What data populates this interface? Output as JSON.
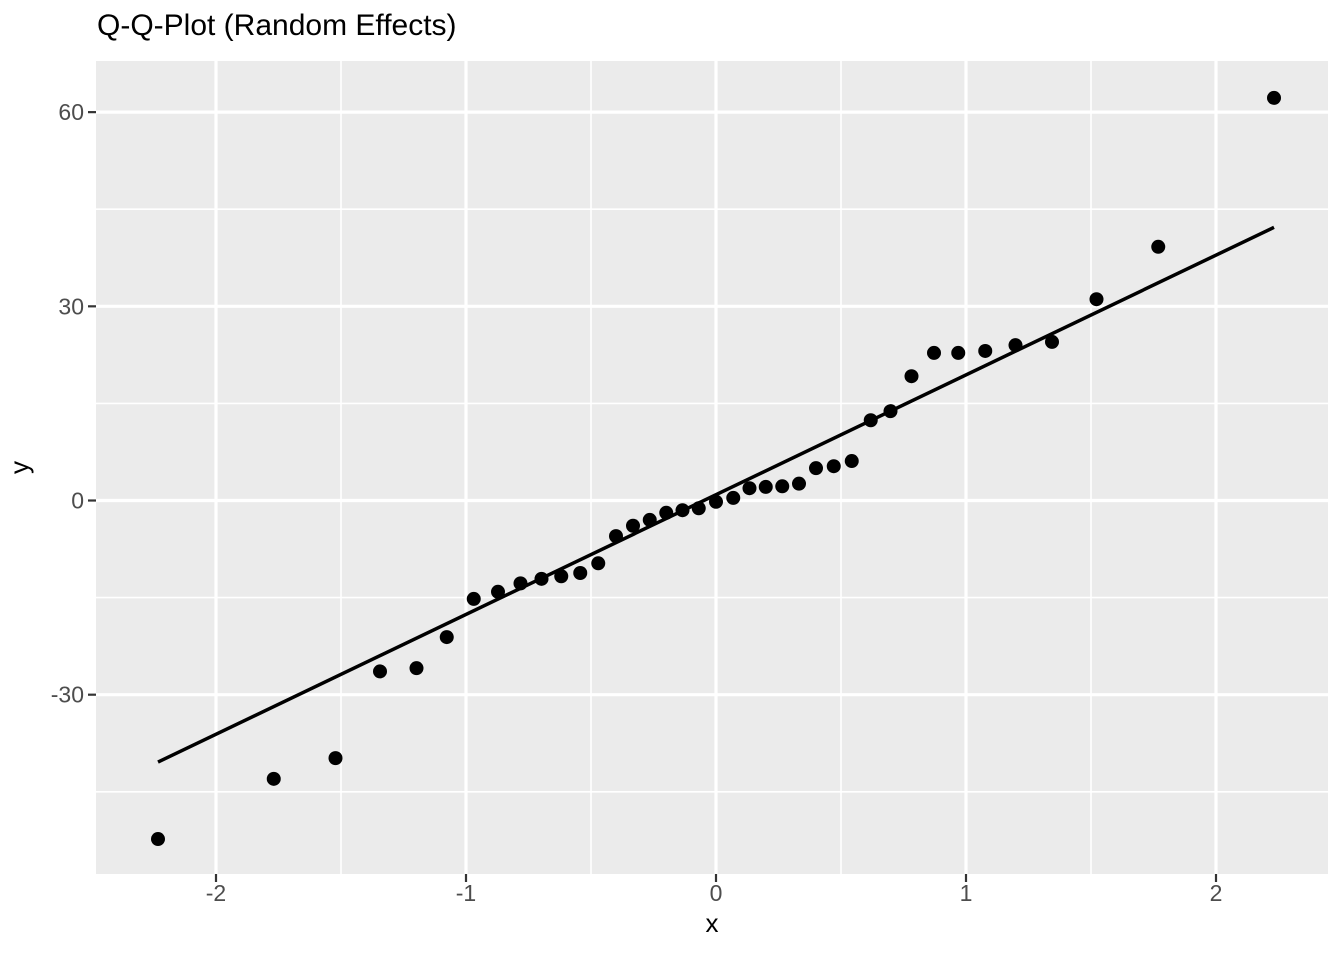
{
  "chart_data": {
    "type": "scatter",
    "title": "Q-Q-Plot (Random Effects)",
    "xlabel": "x",
    "ylabel": "y",
    "xlim": [
      -2.48,
      2.448
    ],
    "ylim": [
      -57.7,
      67.9
    ],
    "x_ticks": [
      -2,
      -1,
      0,
      1,
      2
    ],
    "y_ticks": [
      -30,
      0,
      30,
      60
    ],
    "x_minor_gridlines": [
      -1.5,
      -0.5,
      0.5,
      1.5
    ],
    "y_minor_gridlines": [
      -45,
      -15,
      15,
      45
    ],
    "grid": "on",
    "legend": "none",
    "points": [
      [
        -2.232,
        -52.3
      ],
      [
        -1.769,
        -43.0
      ],
      [
        -1.522,
        -39.8
      ],
      [
        -1.344,
        -26.4
      ],
      [
        -1.198,
        -25.9
      ],
      [
        -1.077,
        -21.1
      ],
      [
        -0.969,
        -15.2
      ],
      [
        -0.872,
        -14.1
      ],
      [
        -0.782,
        -12.8
      ],
      [
        -0.698,
        -12.1
      ],
      [
        -0.619,
        -11.7
      ],
      [
        -0.543,
        -11.2
      ],
      [
        -0.471,
        -9.7
      ],
      [
        -0.4,
        -5.5
      ],
      [
        -0.332,
        -3.9
      ],
      [
        -0.265,
        -3.0
      ],
      [
        -0.199,
        -1.9
      ],
      [
        -0.134,
        -1.5
      ],
      [
        -0.069,
        -1.2
      ],
      [
        0.0,
        -0.2
      ],
      [
        0.069,
        0.4
      ],
      [
        0.134,
        1.9
      ],
      [
        0.199,
        2.1
      ],
      [
        0.265,
        2.2
      ],
      [
        0.332,
        2.6
      ],
      [
        0.4,
        5.0
      ],
      [
        0.471,
        5.3
      ],
      [
        0.543,
        6.1
      ],
      [
        0.619,
        12.4
      ],
      [
        0.698,
        13.8
      ],
      [
        0.782,
        19.2
      ],
      [
        0.872,
        22.8
      ],
      [
        0.969,
        22.8
      ],
      [
        1.077,
        23.1
      ],
      [
        1.198,
        24.0
      ],
      [
        1.344,
        24.5
      ],
      [
        1.522,
        31.1
      ],
      [
        1.769,
        39.2
      ],
      [
        2.232,
        62.2
      ]
    ],
    "reference_line": {
      "x1": -2.232,
      "y1": -40.4,
      "x2": 2.232,
      "y2": 42.2
    },
    "colors": {
      "panel_bg": "#EBEBEB",
      "grid": "#FFFFFF",
      "point": "#000000",
      "line": "#000000",
      "tick_mark": "#333333",
      "tick_label": "#4D4D4D",
      "axis_title": "#000000",
      "title": "#000000"
    }
  }
}
